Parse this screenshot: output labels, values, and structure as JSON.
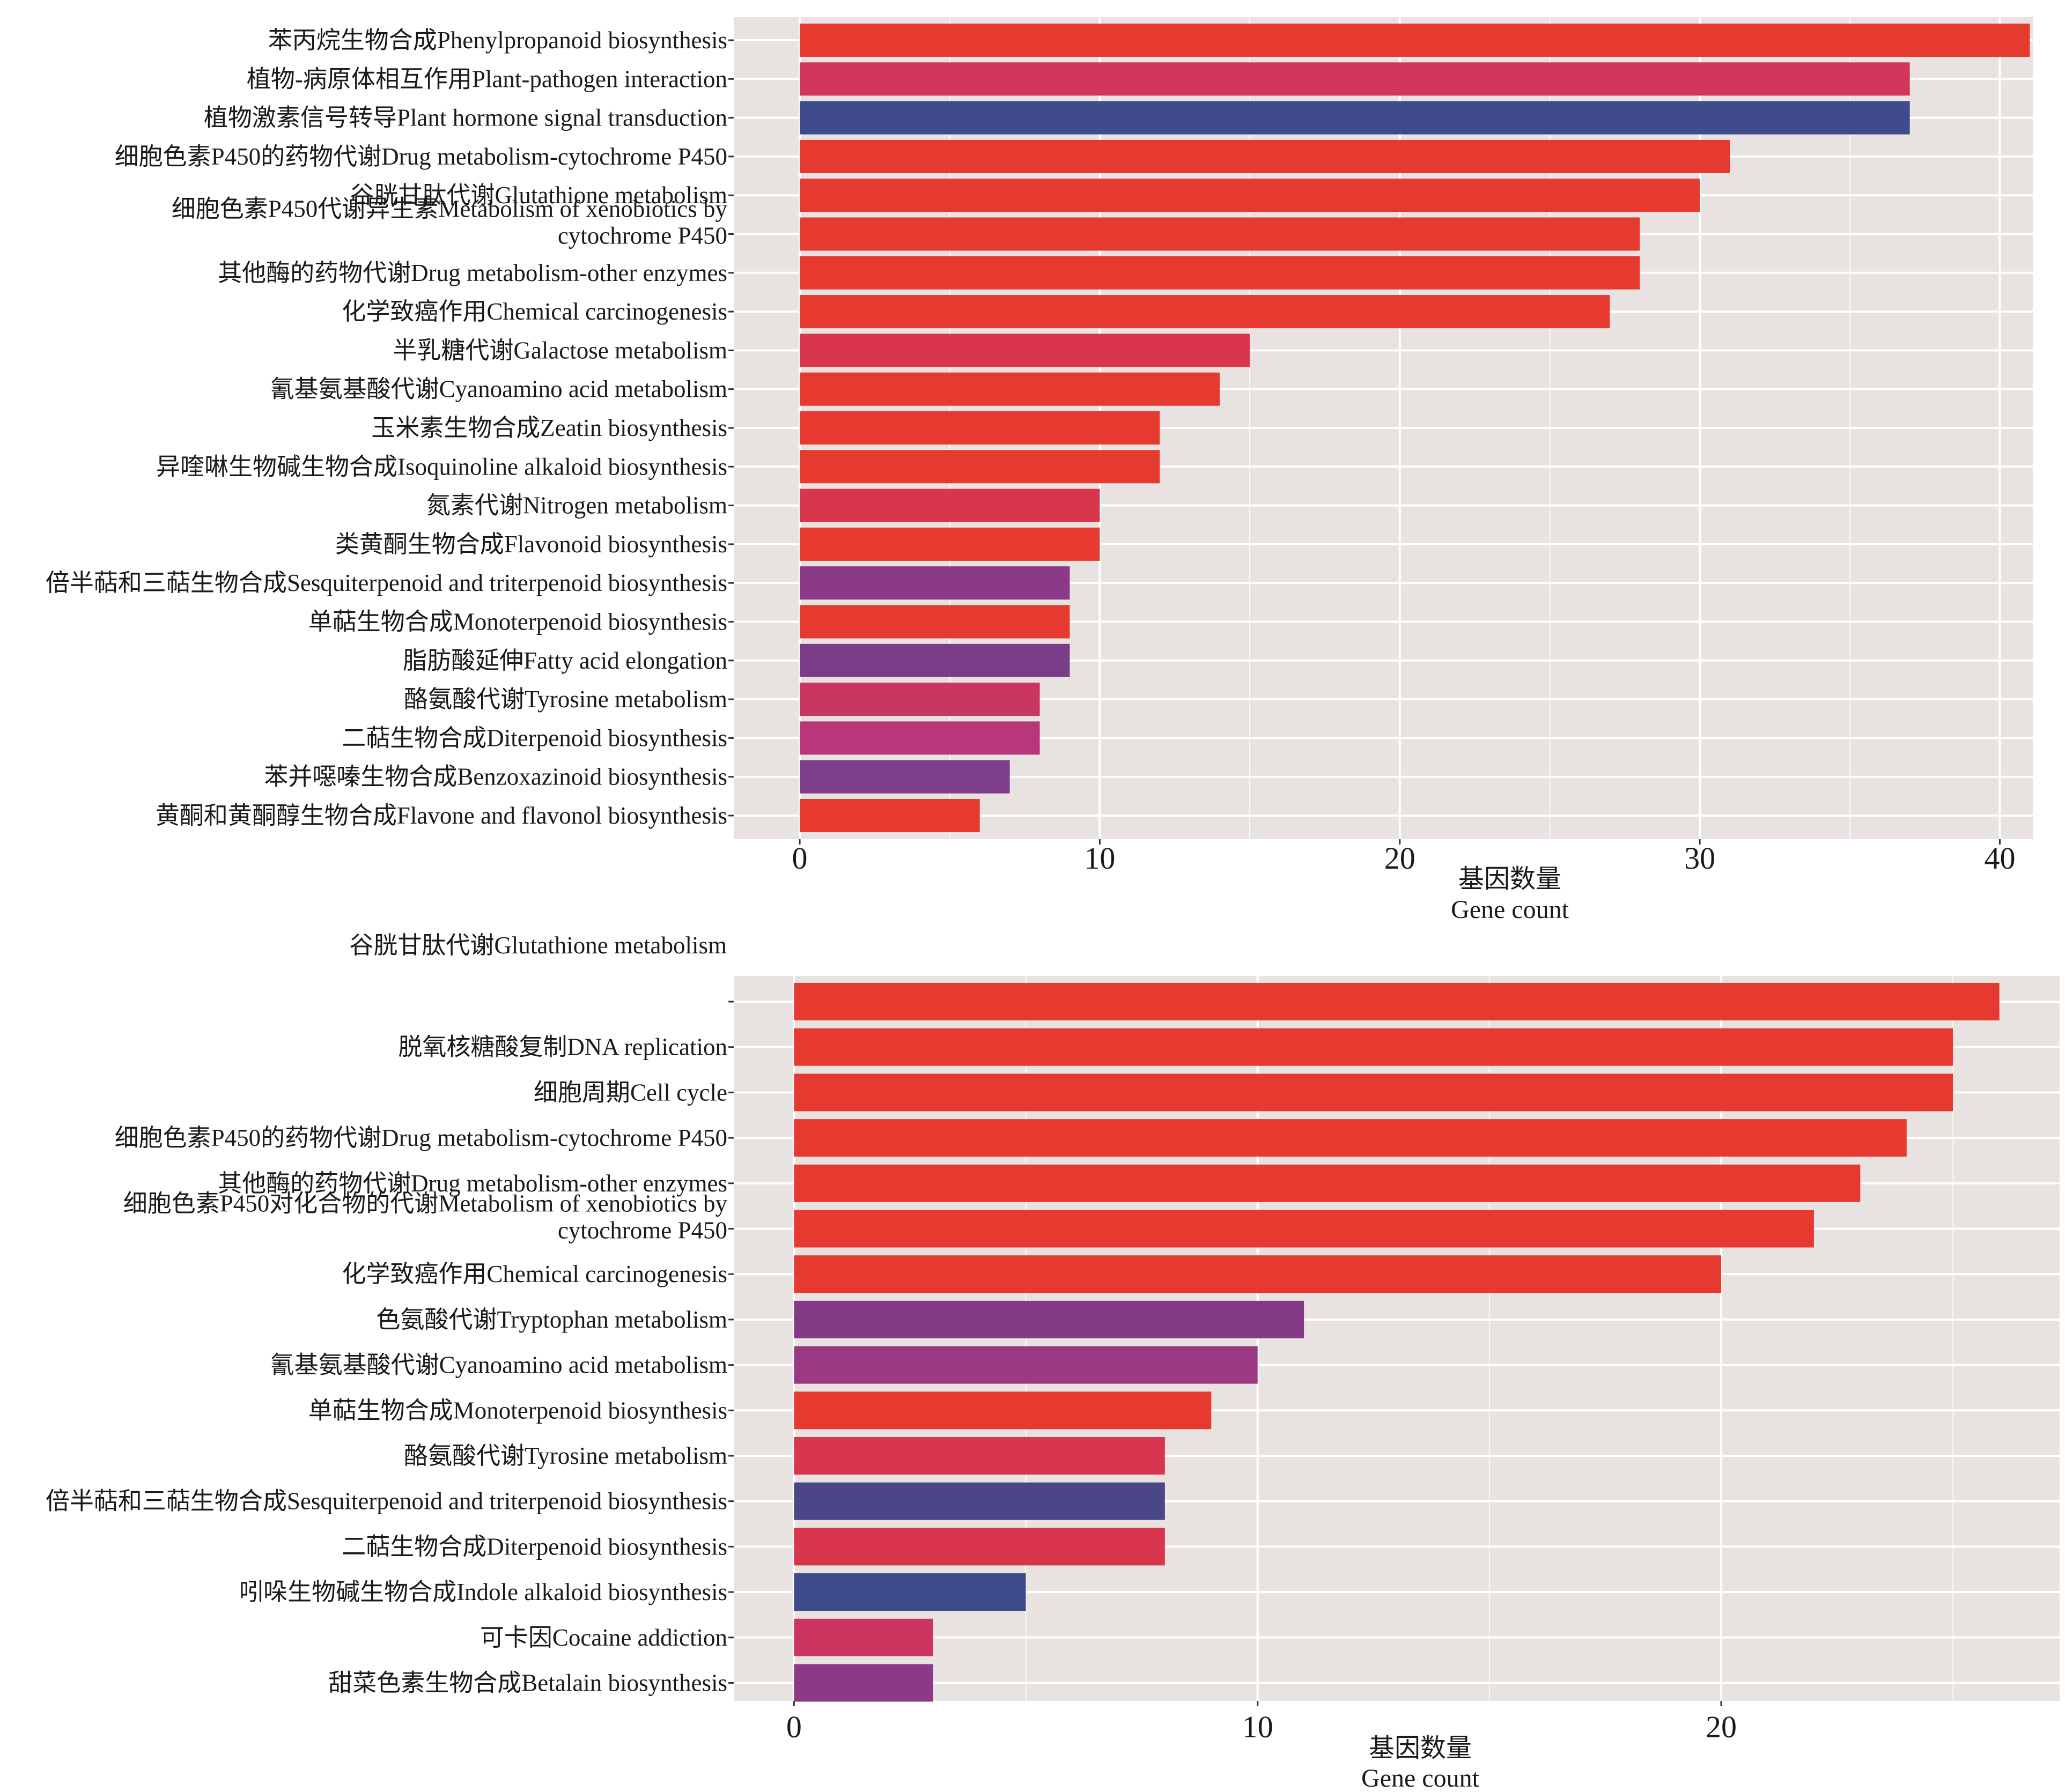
{
  "chart_data": [
    {
      "type": "bar",
      "orientation": "horizontal",
      "xlabel": [
        "基因数量",
        "Gene count"
      ],
      "xlim": [
        -2.2,
        41.1
      ],
      "xticks": [
        0,
        10,
        20,
        30,
        40
      ],
      "grid": true,
      "categories": [
        "苯丙烷生物合成Phenylpropanoid biosynthesis",
        "植物-病原体相互作用Plant-pathogen interaction",
        "植物激素信号转导Plant hormone signal transduction",
        "细胞色素P450的药物代谢Drug metabolism-cytochrome P450",
        "谷胱甘肽代谢Glutathione metabolism",
        "细胞色素P450代谢异生素Metabolism of xenobiotics by\ncytochrome P450",
        "其他酶的药物代谢Drug metabolism-other enzymes",
        "化学致癌作用Chemical carcinogenesis",
        "半乳糖代谢Galactose metabolism",
        "氰基氨基酸代谢Cyanoamino acid metabolism",
        "玉米素生物合成Zeatin biosynthesis",
        "异喹啉生物碱生物合成Isoquinoline alkaloid biosynthesis",
        "氮素代谢Nitrogen metabolism",
        "类黄酮生物合成Flavonoid biosynthesis",
        "倍半萜和三萜生物合成Sesquiterpenoid and triterpenoid biosynthesis",
        "单萜生物合成Monoterpenoid biosynthesis",
        "脂肪酸延伸Fatty acid elongation",
        "酪氨酸代谢Tyrosine metabolism",
        "二萜生物合成Diterpenoid biosynthesis",
        "苯并噁嗪生物合成Benzoxazinoid biosynthesis",
        "黄酮和黄酮醇生物合成Flavone and flavonol biosynthesis"
      ],
      "values": [
        41,
        37,
        37,
        31,
        30,
        28,
        28,
        27,
        15,
        14,
        12,
        12,
        10,
        10,
        9,
        9,
        9,
        8,
        8,
        7,
        6
      ],
      "colors": [
        "#e63a31",
        "#d2365a",
        "#3f4b8c",
        "#e63a31",
        "#e63a31",
        "#e63a31",
        "#e63a31",
        "#e63a31",
        "#d8364d",
        "#e63a31",
        "#e63a31",
        "#e63a31",
        "#d8364d",
        "#e63a31",
        "#8b3a8a",
        "#e63a31",
        "#7a3d88",
        "#c9365f",
        "#b7377a",
        "#7d3d88",
        "#e63a31"
      ]
    },
    {
      "type": "bar",
      "orientation": "horizontal",
      "xlabel": [
        "基因数量",
        "Gene count"
      ],
      "xlim": [
        -1.3,
        27.3
      ],
      "xticks": [
        0,
        10,
        20
      ],
      "grid": true,
      "stray_label": "谷胱甘肽代谢Glutathione metabolism",
      "categories": [
        "",
        "脱氧核糖酸复制DNA replication",
        "细胞周期Cell cycle",
        "细胞色素P450的药物代谢Drug metabolism-cytochrome P450",
        "其他酶的药物代谢Drug metabolism-other enzymes",
        "细胞色素P450对化合物的代谢Metabolism of xenobiotics by\ncytochrome P450",
        "化学致癌作用Chemical carcinogenesis",
        "色氨酸代谢Tryptophan metabolism",
        "氰基氨基酸代谢Cyanoamino acid metabolism",
        "单萜生物合成Monoterpenoid biosynthesis",
        "酪氨酸代谢Tyrosine metabolism",
        "倍半萜和三萜生物合成Sesquiterpenoid and triterpenoid biosynthesis",
        "二萜生物合成Diterpenoid biosynthesis",
        "吲哚生物碱生物合成Indole alkaloid biosynthesis",
        "可卡因Cocaine addiction",
        "甜菜色素生物合成Betalain biosynthesis"
      ],
      "values": [
        26,
        25,
        25,
        24,
        23,
        22,
        20,
        11,
        10,
        9,
        8,
        8,
        8,
        5,
        3,
        3
      ],
      "colors": [
        "#e63a31",
        "#e63a31",
        "#e63a31",
        "#e63a31",
        "#e63a31",
        "#e63a31",
        "#e63a31",
        "#823a87",
        "#9a3882",
        "#e63a31",
        "#d8364d",
        "#4b4688",
        "#d8364d",
        "#3d4b8c",
        "#cc3560",
        "#8c3a88"
      ]
    }
  ]
}
